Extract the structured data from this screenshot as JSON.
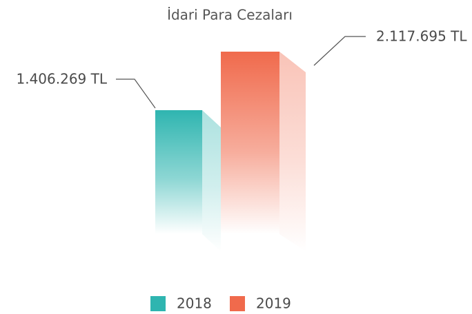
{
  "chart_data": {
    "type": "bar",
    "title": "İdari Para Cezaları",
    "categories": [
      "2018",
      "2019"
    ],
    "series": [
      {
        "name": "2018",
        "color": "#2fb5b0",
        "values": [
          1406269,
          null
        ]
      },
      {
        "name": "2019",
        "color": "#f06a4c",
        "values": [
          null,
          2117695
        ]
      }
    ],
    "value_labels": [
      "1.406.269 TL",
      "2.117.695 TL"
    ]
  }
}
